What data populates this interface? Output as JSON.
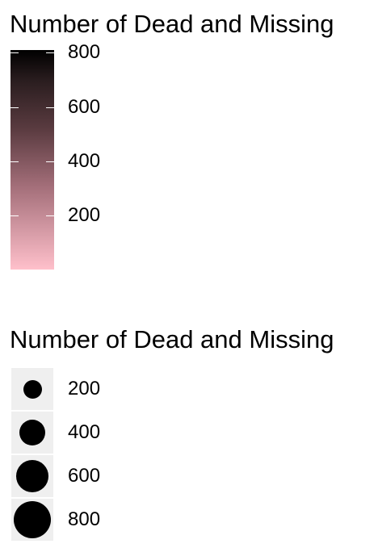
{
  "legends": {
    "color": {
      "title": "Number of Dead and Missing",
      "ticks": [
        {
          "value": 200,
          "label": "200"
        },
        {
          "value": 400,
          "label": "400"
        },
        {
          "value": 600,
          "label": "600"
        },
        {
          "value": 800,
          "label": "800"
        }
      ]
    },
    "size": {
      "title": "Number of Dead and Missing",
      "keys": [
        {
          "value": 200,
          "label": "200"
        },
        {
          "value": 400,
          "label": "400"
        },
        {
          "value": 600,
          "label": "600"
        },
        {
          "value": 800,
          "label": "800"
        }
      ]
    }
  },
  "chart_data": {
    "type": "scatter",
    "color_scale": {
      "variable": "Number of Dead and Missing",
      "low_color": "#ffc0cb",
      "high_color": "#000000",
      "breaks": [
        200,
        400,
        600,
        800
      ],
      "range": [
        0,
        810
      ]
    },
    "size_scale": {
      "variable": "Number of Dead and Missing",
      "breaks": [
        200,
        400,
        600,
        800
      ],
      "point_color": "#000000",
      "key_background": "#efefef"
    }
  }
}
